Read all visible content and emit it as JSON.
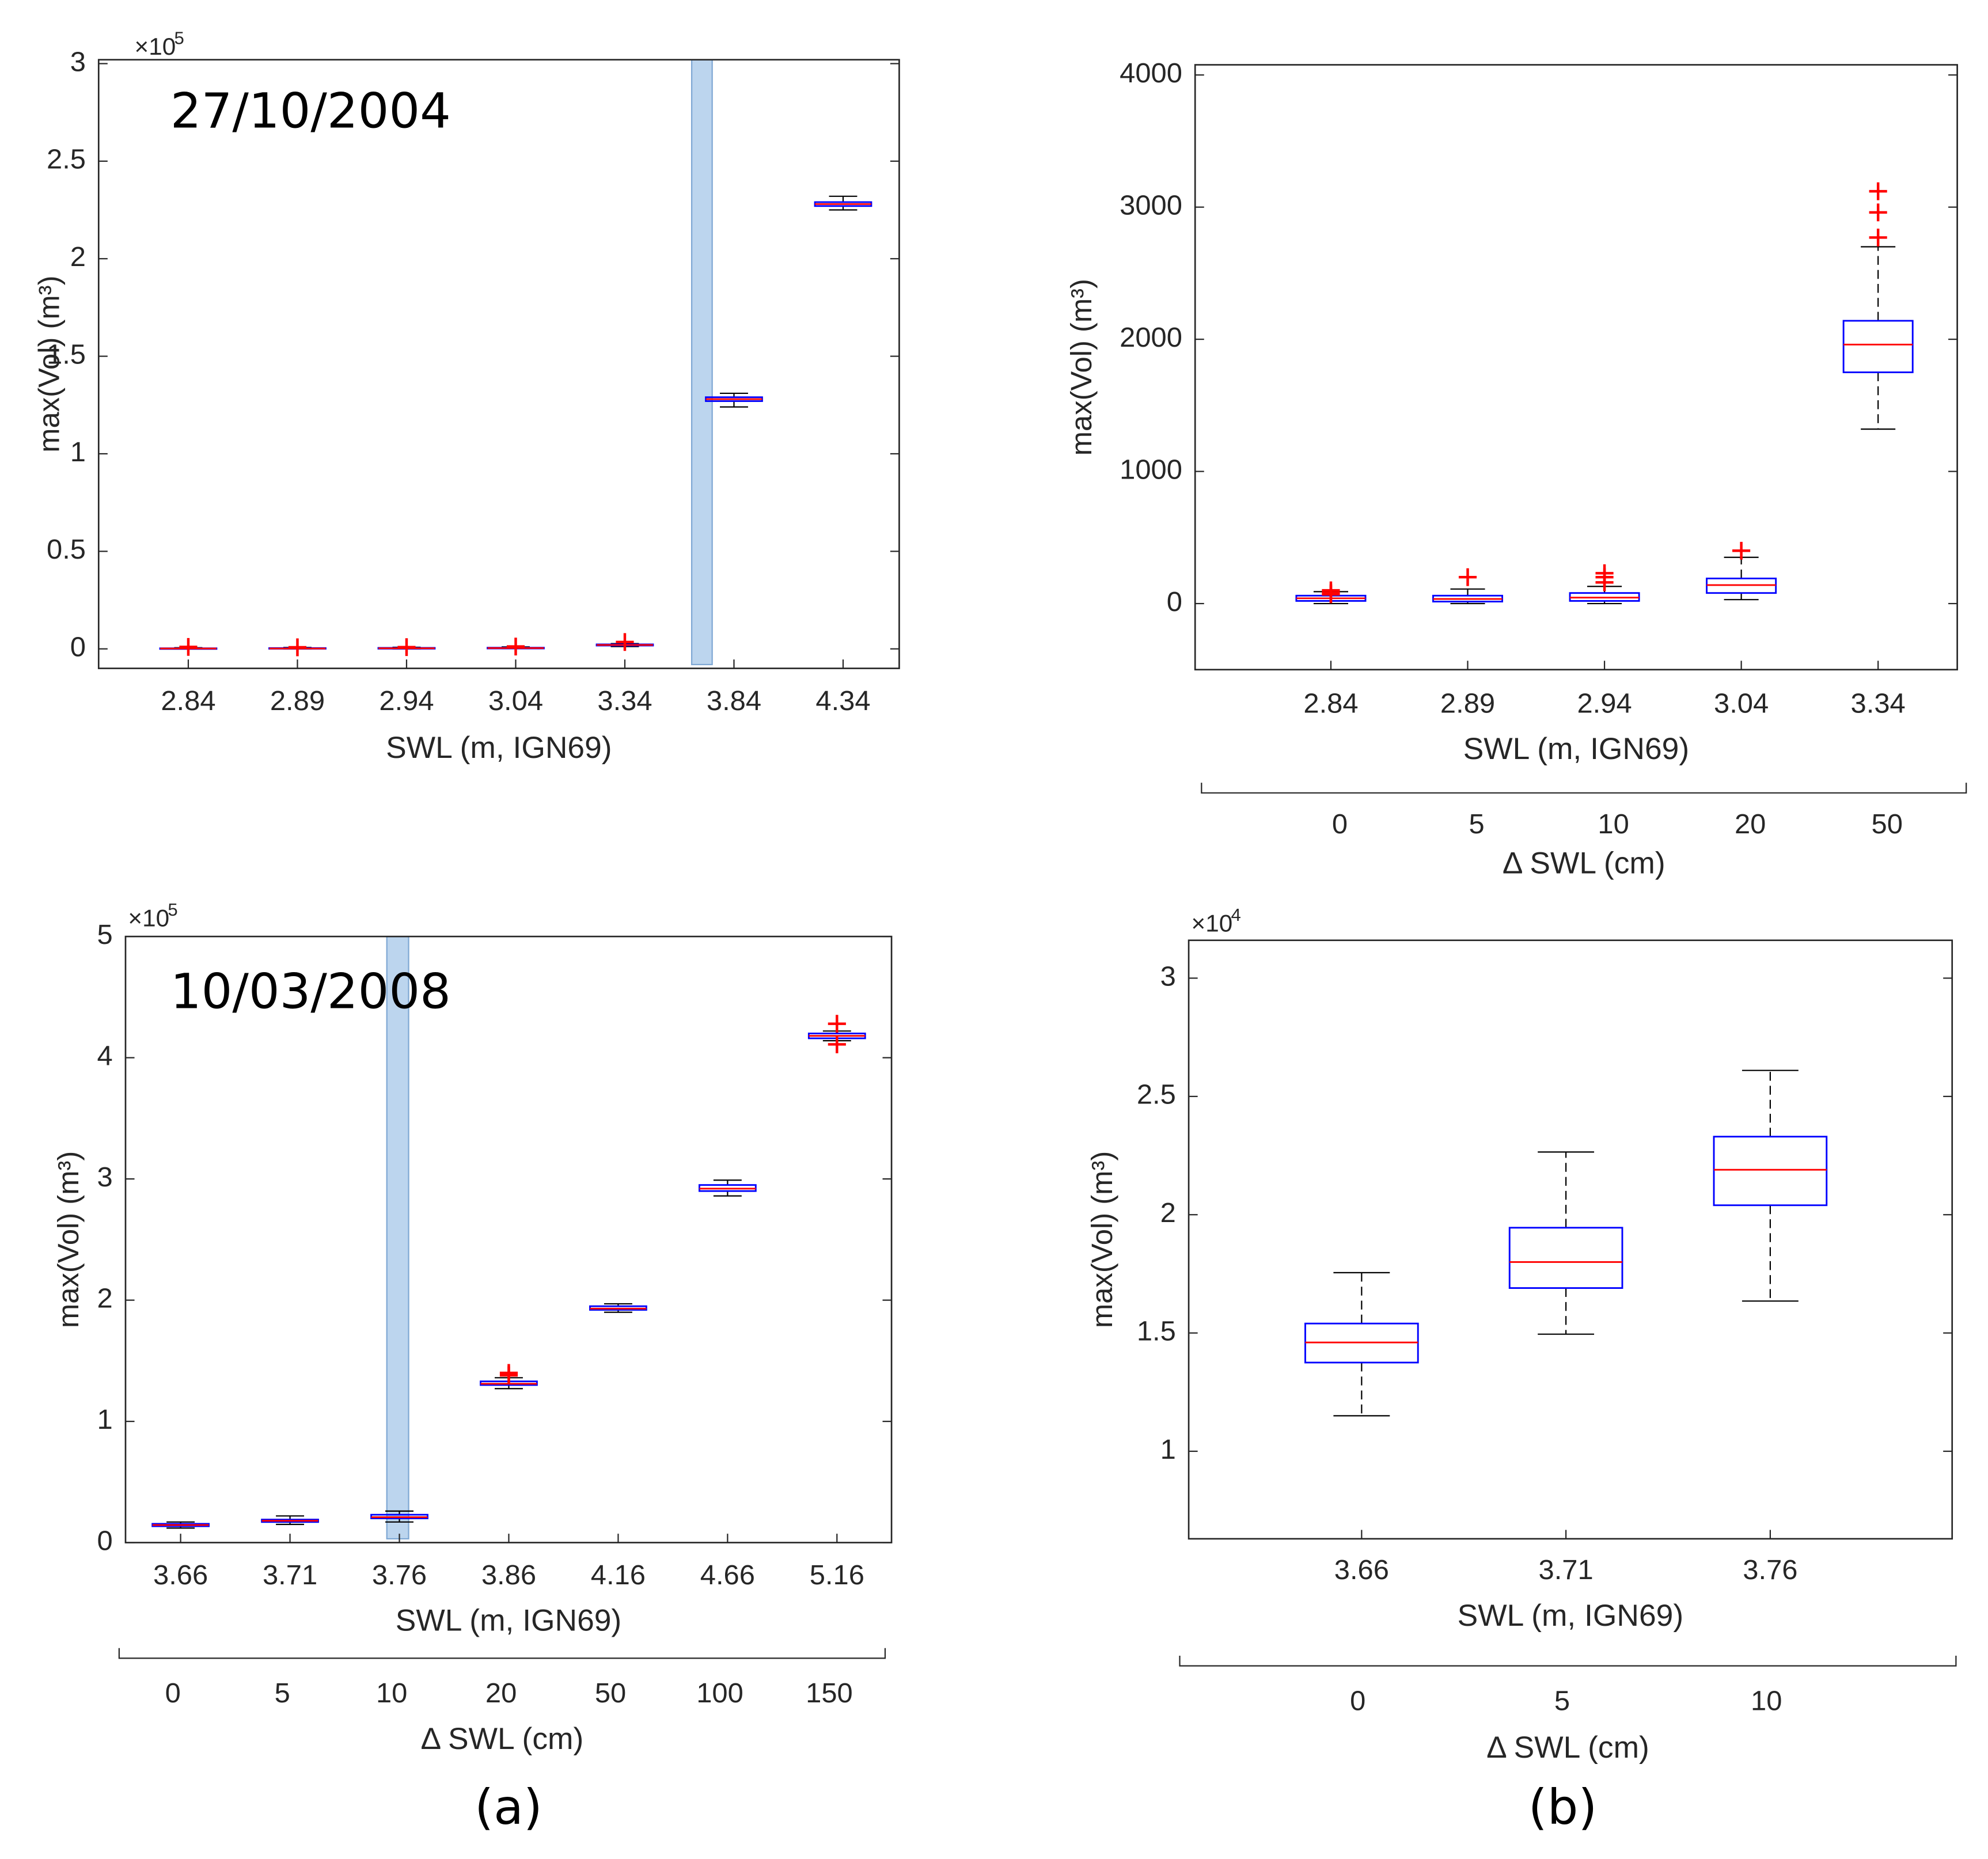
{
  "chart_data": [
    {
      "type": "box",
      "annotation": "27/10/2004",
      "y_label": "max(Vol) (m³)",
      "x_label": "SWL (m, IGN69)",
      "y_multiplier": "×10",
      "y_multiplier_power": "5",
      "categories": [
        "2.84",
        "2.89",
        "2.94",
        "3.04",
        "3.34",
        "3.84",
        "4.34"
      ],
      "boxes": [
        {
          "low": 0,
          "q1": 0.001,
          "median": 0.002,
          "q3": 0.003,
          "high": 0.006,
          "outliers": [
            0.01
          ]
        },
        {
          "low": 0,
          "q1": 0.001,
          "median": 0.002,
          "q3": 0.004,
          "high": 0.007,
          "outliers": [
            0.008
          ]
        },
        {
          "low": 0,
          "q1": 0.001,
          "median": 0.003,
          "q3": 0.005,
          "high": 0.008,
          "outliers": [
            0.009
          ]
        },
        {
          "low": 0.001,
          "q1": 0.002,
          "median": 0.004,
          "q3": 0.006,
          "high": 0.01,
          "outliers": [
            0.012
          ]
        },
        {
          "low": 0.012,
          "q1": 0.017,
          "median": 0.02,
          "q3": 0.023,
          "high": 0.027,
          "outliers": [
            0.035
          ]
        },
        {
          "low": 1.24,
          "q1": 1.27,
          "median": 1.28,
          "q3": 1.29,
          "high": 1.31,
          "outliers": []
        },
        {
          "low": 2.25,
          "q1": 2.27,
          "median": 2.28,
          "q3": 2.29,
          "high": 2.32,
          "outliers": []
        }
      ],
      "box_color": "#0000ff",
      "median_color": "#ff0000",
      "outlier_color": "#ff0000",
      "ylim": [
        -0.1,
        3.02
      ],
      "yticks": [
        0,
        0.5,
        1,
        1.5,
        2,
        2.5,
        3
      ]
    },
    {
      "type": "box",
      "y_label": "max(Vol) (m³)",
      "x_label": "SWL (m, IGN69)",
      "secondary_x_label": "Δ SWL (cm)",
      "secondary_categories": [
        "0",
        "5",
        "10",
        "20",
        "50"
      ],
      "categories": [
        "2.84",
        "2.89",
        "2.94",
        "3.04",
        "3.34"
      ],
      "boxes": [
        {
          "low": 0,
          "q1": 20,
          "median": 40,
          "q3": 60,
          "high": 90,
          "outliers": [
            70,
            80,
            100
          ]
        },
        {
          "low": 0,
          "q1": 15,
          "median": 35,
          "q3": 60,
          "high": 110,
          "outliers": [
            200
          ]
        },
        {
          "low": 0,
          "q1": 20,
          "median": 45,
          "q3": 80,
          "high": 130,
          "outliers": [
            160,
            200,
            230
          ]
        },
        {
          "low": 30,
          "q1": 80,
          "median": 140,
          "q3": 190,
          "high": 350,
          "outliers": [
            400
          ]
        },
        {
          "low": 1320,
          "q1": 1750,
          "median": 1960,
          "q3": 2140,
          "high": 2700,
          "outliers": [
            2770,
            2960,
            3120
          ]
        }
      ],
      "box_color": "#0000ff",
      "median_color": "#ff0000",
      "outlier_color": "#ff0000",
      "ylim": [
        -500,
        4077
      ],
      "yticks": [
        0,
        1000,
        2000,
        3000,
        4000
      ]
    },
    {
      "type": "box",
      "annotation": "10/03/2008",
      "y_label": "max(Vol) (m³)",
      "x_label": "SWL (m, IGN69)",
      "y_multiplier": "×10",
      "y_multiplier_power": "5",
      "secondary_x_label": "Δ SWL (cm)",
      "secondary_categories": [
        "0",
        "5",
        "10",
        "20",
        "50",
        "100",
        "150"
      ],
      "categories": [
        "3.66",
        "3.71",
        "3.76",
        "3.86",
        "4.16",
        "4.66",
        "5.16"
      ],
      "boxes": [
        {
          "low": 0.12,
          "q1": 0.135,
          "median": 0.145,
          "q3": 0.155,
          "high": 0.17,
          "outliers": []
        },
        {
          "low": 0.15,
          "q1": 0.17,
          "median": 0.18,
          "q3": 0.19,
          "high": 0.22,
          "outliers": []
        },
        {
          "low": 0.17,
          "q1": 0.2,
          "median": 0.21,
          "q3": 0.23,
          "high": 0.26,
          "outliers": []
        },
        {
          "low": 1.27,
          "q1": 1.3,
          "median": 1.31,
          "q3": 1.33,
          "high": 1.36,
          "outliers": [
            1.38,
            1.4
          ]
        },
        {
          "low": 1.9,
          "q1": 1.92,
          "median": 1.93,
          "q3": 1.95,
          "high": 1.97,
          "outliers": []
        },
        {
          "low": 2.86,
          "q1": 2.9,
          "median": 2.92,
          "q3": 2.95,
          "high": 2.99,
          "outliers": []
        },
        {
          "low": 4.14,
          "q1": 4.16,
          "median": 4.18,
          "q3": 4.2,
          "high": 4.22,
          "outliers": [
            4.11,
            4.28
          ]
        }
      ],
      "box_color": "#0000ff",
      "median_color": "#ff0000",
      "outlier_color": "#ff0000",
      "ylim": [
        0,
        5
      ],
      "yticks": [
        0,
        1,
        2,
        3,
        4,
        5
      ]
    },
    {
      "type": "box",
      "y_label": "max(Vol) (m³)",
      "x_label": "SWL (m, IGN69)",
      "y_multiplier": "×10",
      "y_multiplier_power": "4",
      "secondary_x_label": "Δ SWL (cm)",
      "secondary_categories": [
        "0",
        "5",
        "10"
      ],
      "categories": [
        "3.66",
        "3.71",
        "3.76"
      ],
      "boxes": [
        {
          "low": 1.15,
          "q1": 1.375,
          "median": 1.46,
          "q3": 1.54,
          "high": 1.755,
          "outliers": []
        },
        {
          "low": 1.495,
          "q1": 1.69,
          "median": 1.8,
          "q3": 1.945,
          "high": 2.265,
          "outliers": []
        },
        {
          "low": 1.635,
          "q1": 2.04,
          "median": 2.19,
          "q3": 2.33,
          "high": 2.61,
          "outliers": []
        }
      ],
      "box_color": "#0000ff",
      "median_color": "#ff0000",
      "outlier_color": "#ff0000",
      "ylim": [
        0.63,
        3.16
      ],
      "yticks": [
        1,
        1.5,
        2,
        2.5,
        3
      ]
    }
  ],
  "panel_labels": [
    "(a)",
    "(b)"
  ]
}
